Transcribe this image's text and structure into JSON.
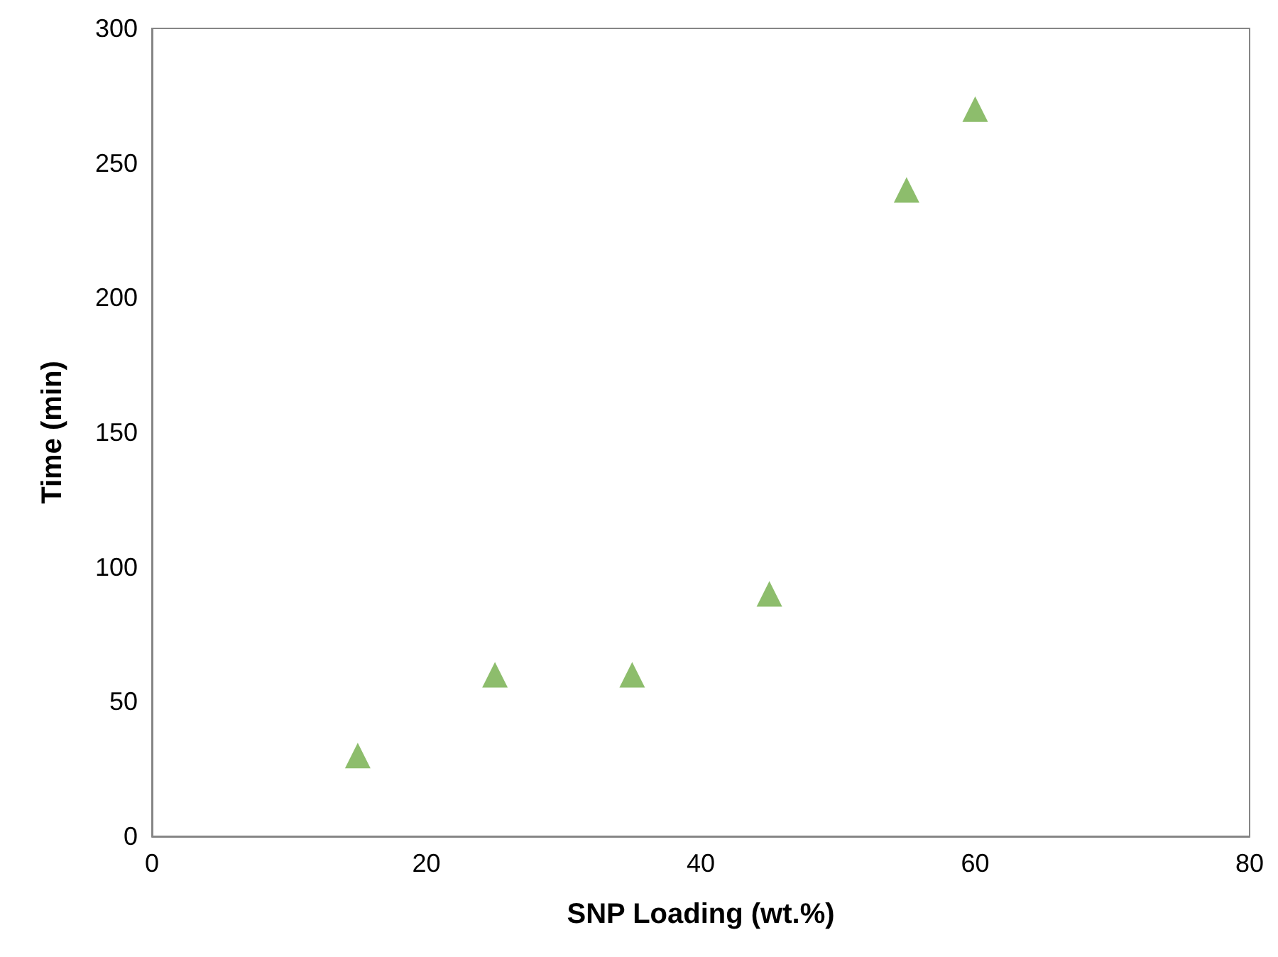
{
  "chart_data": {
    "type": "scatter",
    "xlabel": "SNP Loading (wt.%)",
    "ylabel": "Time (min)",
    "x": [
      15,
      25,
      35,
      45,
      55,
      60
    ],
    "series": [
      {
        "color": "#70ad47",
        "values": [
          30,
          60,
          60,
          90,
          240,
          270
        ]
      }
    ],
    "xlim": [
      0,
      80
    ],
    "xticks": [
      0,
      20,
      40,
      60,
      80
    ],
    "ylim": [
      0,
      300
    ],
    "yticks": [
      0,
      50,
      100,
      150,
      200,
      250,
      300
    ],
    "marker": "triangle"
  }
}
